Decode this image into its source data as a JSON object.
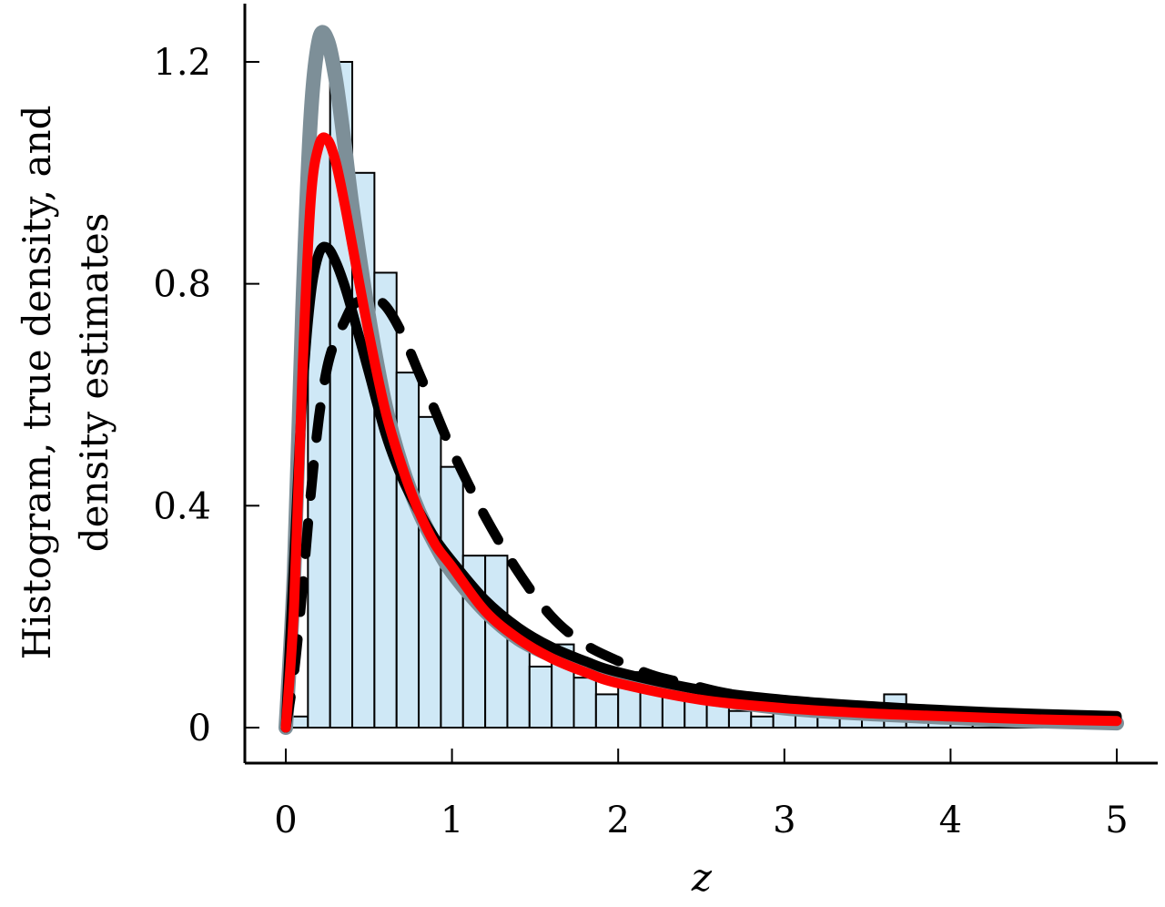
{
  "chart_data": {
    "type": "bar",
    "xlabel": "z",
    "ylabel_lines": [
      "Histogram, true density, and",
      "density estimates"
    ],
    "xlim": [
      -0.25,
      5.25
    ],
    "ylim": [
      -0.06,
      1.31
    ],
    "xticks": [
      0,
      1,
      2,
      3,
      4,
      5
    ],
    "xtick_labels": [
      "0",
      "1",
      "2",
      "3",
      "4",
      "5"
    ],
    "yticks": [
      0,
      0.4,
      0.8,
      1.2
    ],
    "ytick_labels": [
      "0",
      "0.4",
      "0.8",
      "1.2"
    ],
    "histogram": {
      "bin_width": 0.1333,
      "bin_starts": [
        0.0,
        0.1333,
        0.2667,
        0.4,
        0.5333,
        0.6667,
        0.8,
        0.9333,
        1.0667,
        1.2,
        1.3333,
        1.4667,
        1.6,
        1.7333,
        1.8667,
        2.0,
        2.1333,
        2.2667,
        2.4,
        2.5333,
        2.6667,
        2.8,
        2.9333,
        3.0667,
        3.2,
        3.3333,
        3.4667,
        3.6,
        3.7333,
        3.8667,
        4.0,
        4.1333,
        4.2667,
        4.4,
        4.5333,
        4.6667,
        4.8
      ],
      "values": [
        0.02,
        1.06,
        1.2,
        1.0,
        0.82,
        0.64,
        0.56,
        0.47,
        0.31,
        0.31,
        0.17,
        0.11,
        0.15,
        0.09,
        0.06,
        0.1,
        0.08,
        0.07,
        0.05,
        0.06,
        0.03,
        0.02,
        0.03,
        0.04,
        0.03,
        0.02,
        0.03,
        0.06,
        0.02,
        0.02,
        0.01,
        0.02,
        0.02,
        0.01,
        0.01,
        0.01,
        0.01
      ],
      "fill": "#cfe8f6",
      "edge": "#000000"
    },
    "series": [
      {
        "style": "true-density-band",
        "color": "#7d8f98",
        "x": [
          0.0,
          0.05,
          0.1,
          0.15,
          0.2,
          0.25,
          0.3,
          0.35,
          0.4,
          0.5,
          0.6,
          0.7,
          0.8,
          0.9,
          1.0,
          1.2,
          1.4,
          1.6,
          1.8,
          2.0,
          2.5,
          3.0,
          3.5,
          4.0,
          4.5,
          5.0
        ],
        "y": [
          0.0,
          0.28,
          0.75,
          1.1,
          1.24,
          1.24,
          1.17,
          1.06,
          0.94,
          0.74,
          0.58,
          0.47,
          0.39,
          0.33,
          0.28,
          0.21,
          0.16,
          0.13,
          0.105,
          0.085,
          0.055,
          0.035,
          0.025,
          0.018,
          0.012,
          0.008
        ]
      },
      {
        "style": "dashed",
        "color": "#000000",
        "x": [
          0.0,
          0.05,
          0.1,
          0.15,
          0.2,
          0.25,
          0.3,
          0.35,
          0.4,
          0.45,
          0.5,
          0.6,
          0.7,
          0.8,
          0.9,
          1.0,
          1.2,
          1.4,
          1.6,
          1.8,
          2.0,
          2.2,
          2.4,
          2.6,
          2.8,
          3.0,
          3.5,
          4.0,
          4.5,
          5.0
        ],
        "y": [
          0.0,
          0.1,
          0.25,
          0.42,
          0.56,
          0.65,
          0.7,
          0.73,
          0.76,
          0.77,
          0.78,
          0.76,
          0.71,
          0.64,
          0.57,
          0.5,
          0.38,
          0.28,
          0.2,
          0.15,
          0.12,
          0.095,
          0.08,
          0.065,
          0.055,
          0.048,
          0.035,
          0.027,
          0.022,
          0.018
        ]
      },
      {
        "style": "solid-black",
        "color": "#000000",
        "x": [
          0.0,
          0.05,
          0.1,
          0.15,
          0.2,
          0.25,
          0.3,
          0.35,
          0.4,
          0.5,
          0.6,
          0.7,
          0.8,
          0.9,
          1.0,
          1.2,
          1.4,
          1.6,
          1.8,
          2.0,
          2.5,
          3.0,
          3.5,
          4.0,
          4.5,
          5.0
        ],
        "y": [
          0.0,
          0.3,
          0.6,
          0.78,
          0.855,
          0.865,
          0.84,
          0.8,
          0.75,
          0.64,
          0.53,
          0.45,
          0.39,
          0.34,
          0.3,
          0.23,
          0.18,
          0.145,
          0.12,
          0.1,
          0.068,
          0.05,
          0.039,
          0.031,
          0.025,
          0.021
        ]
      },
      {
        "style": "solid-red",
        "color": "#ff0000",
        "x": [
          0.0,
          0.05,
          0.1,
          0.15,
          0.2,
          0.25,
          0.3,
          0.35,
          0.4,
          0.5,
          0.6,
          0.7,
          0.8,
          0.9,
          1.0,
          1.2,
          1.4,
          1.6,
          1.8,
          2.0,
          2.5,
          3.0,
          3.5,
          4.0,
          4.5,
          5.0
        ],
        "y": [
          0.0,
          0.22,
          0.64,
          0.95,
          1.05,
          1.06,
          1.02,
          0.95,
          0.87,
          0.71,
          0.57,
          0.47,
          0.39,
          0.33,
          0.29,
          0.21,
          0.16,
          0.125,
          0.1,
          0.08,
          0.05,
          0.035,
          0.026,
          0.02,
          0.015,
          0.012
        ]
      }
    ]
  }
}
